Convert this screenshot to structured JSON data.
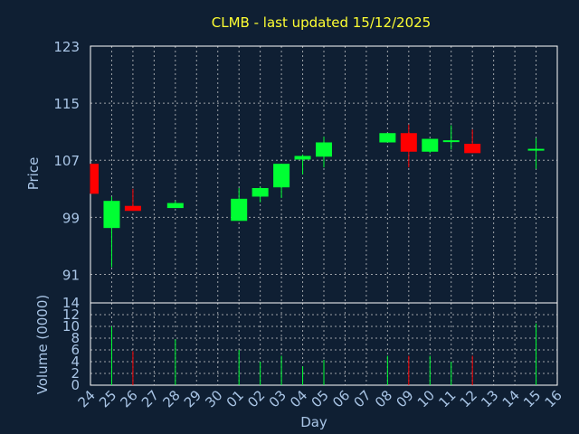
{
  "colors": {
    "background": "#0f1f33",
    "axis": "#ffffff",
    "grid": "#d9d9d9",
    "label": "#a9c5e6",
    "title": "#ffff33",
    "up": "#00ff33",
    "down": "#ff0000"
  },
  "chart_data": [
    {
      "type": "candlestick",
      "title": "CLMB - last updated 15/12/2025",
      "ylabel": "Price",
      "ylim": [
        87,
        123
      ],
      "yticks": [
        91,
        99,
        107,
        115,
        123
      ],
      "grid": true,
      "categories": [
        "24",
        "25",
        "26",
        "27",
        "28",
        "29",
        "30",
        "01",
        "02",
        "03",
        "04",
        "05",
        "06",
        "07",
        "08",
        "09",
        "10",
        "11",
        "12",
        "13",
        "14",
        "15",
        "16"
      ],
      "candles": [
        {
          "day": "24",
          "open": 106.5,
          "close": 102.3,
          "high": 106.5,
          "low": 102.3
        },
        {
          "day": "25",
          "open": 97.5,
          "close": 101.3,
          "high": 101.9,
          "low": 92.0
        },
        {
          "day": "26",
          "open": 100.6,
          "close": 99.9,
          "high": 103.0,
          "low": 99.9
        },
        {
          "day": "28",
          "open": 100.3,
          "close": 101.0,
          "high": 101.3,
          "low": 100.3
        },
        {
          "day": "01",
          "open": 98.5,
          "close": 101.6,
          "high": 103.1,
          "low": 98.5
        },
        {
          "day": "02",
          "open": 101.9,
          "close": 103.1,
          "high": 103.3,
          "low": 101.1
        },
        {
          "day": "03",
          "open": 103.2,
          "close": 106.5,
          "high": 106.5,
          "low": 101.7
        },
        {
          "day": "04",
          "open": 107.1,
          "close": 107.6,
          "high": 107.8,
          "low": 105.0
        },
        {
          "day": "05",
          "open": 107.5,
          "close": 109.5,
          "high": 110.3,
          "low": 106.0
        },
        {
          "day": "08",
          "open": 109.5,
          "close": 110.8,
          "high": 110.8,
          "low": 109.5
        },
        {
          "day": "09",
          "open": 110.8,
          "close": 108.2,
          "high": 112.0,
          "low": 106.0
        },
        {
          "day": "10",
          "open": 108.2,
          "close": 110.0,
          "high": 110.0,
          "low": 108.0
        },
        {
          "day": "11",
          "open": 109.6,
          "close": 109.8,
          "high": 111.9,
          "low": 108.5
        },
        {
          "day": "12",
          "open": 109.3,
          "close": 108.0,
          "high": 111.3,
          "low": 108.0
        },
        {
          "day": "15",
          "open": 108.4,
          "close": 108.6,
          "high": 110.1,
          "low": 105.8
        }
      ]
    },
    {
      "type": "bar",
      "ylabel": "Volume (0000)",
      "xlabel": "Day",
      "ylim": [
        0,
        14
      ],
      "yticks": [
        0,
        2,
        4,
        6,
        8,
        10,
        12,
        14
      ],
      "grid": true,
      "bars": [
        {
          "day": "25",
          "value": 10.0,
          "dir": "up"
        },
        {
          "day": "26",
          "value": 5.8,
          "dir": "down"
        },
        {
          "day": "28",
          "value": 7.8,
          "dir": "up"
        },
        {
          "day": "01",
          "value": 6.0,
          "dir": "up"
        },
        {
          "day": "02",
          "value": 4.0,
          "dir": "up"
        },
        {
          "day": "03",
          "value": 5.0,
          "dir": "up"
        },
        {
          "day": "04",
          "value": 3.2,
          "dir": "up"
        },
        {
          "day": "05",
          "value": 4.3,
          "dir": "up"
        },
        {
          "day": "08",
          "value": 5.0,
          "dir": "up"
        },
        {
          "day": "09",
          "value": 5.0,
          "dir": "down"
        },
        {
          "day": "10",
          "value": 5.0,
          "dir": "up"
        },
        {
          "day": "11",
          "value": 4.0,
          "dir": "up"
        },
        {
          "day": "12",
          "value": 5.0,
          "dir": "down"
        },
        {
          "day": "15",
          "value": 10.5,
          "dir": "up"
        }
      ]
    }
  ]
}
